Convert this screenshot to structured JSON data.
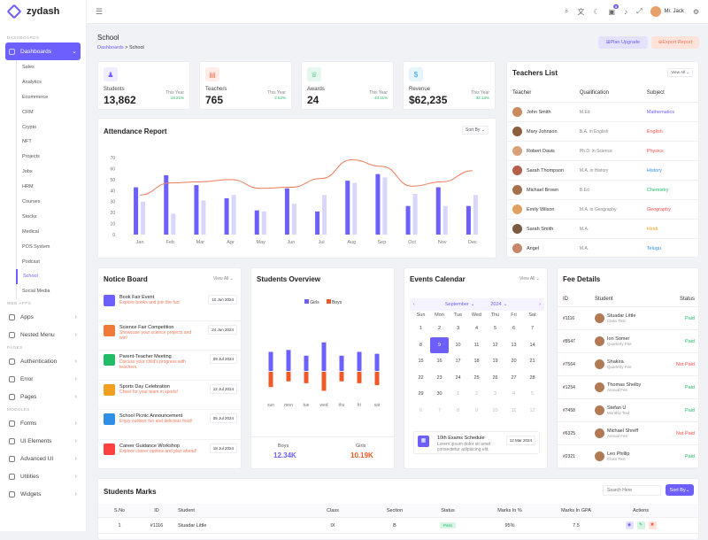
{
  "app": {
    "name": "zydash"
  },
  "topbar": {
    "user": "Mr. Jack",
    "notifications": "5"
  },
  "sidebar": {
    "sections": [
      "DASHBOARDS",
      "WEB APPS",
      "PAGES",
      "MODULES"
    ],
    "dashboards_label": "Dashboards",
    "sub_items": [
      "Sales",
      "Analytics",
      "Ecommerce",
      "CRM",
      "Crypto",
      "NFT",
      "Projects",
      "Jobs",
      "HRM",
      "Courses",
      "Stocks",
      "Medical",
      "POS System",
      "Podcast",
      "School",
      "Social Media"
    ],
    "apps": [
      "Apps",
      "Nested Menu"
    ],
    "pages": [
      "Authentication",
      "Error",
      "Pages"
    ],
    "modules": [
      "Forms",
      "UI Elements",
      "Advanced UI",
      "Utilities",
      "Widgets"
    ]
  },
  "page": {
    "title": "School",
    "breadcrumb_root": "Dashboards",
    "breadcrumb_sep": ">",
    "breadcrumb_current": "School",
    "upgrade": "Plan Upgrade",
    "export": "Export Report"
  },
  "stats": [
    {
      "label": "Students",
      "value": "13,862",
      "period": "This Year",
      "change": "18.21%",
      "icon": "students-icon",
      "color": "#6c5ffc",
      "bg": "#efedff"
    },
    {
      "label": "Teachers",
      "value": "765",
      "period": "This Year",
      "change": "2.52%",
      "icon": "teachers-icon",
      "color": "#f07a5a",
      "bg": "#fdece7"
    },
    {
      "label": "Awards",
      "value": "24",
      "period": "This Year",
      "change": "43.11%",
      "icon": "trophy-icon",
      "color": "#22bb66",
      "bg": "#e6f8ee"
    },
    {
      "label": "Revenue",
      "value": "$62,235",
      "period": "This Year",
      "change": "32.13%",
      "icon": "dollar-icon",
      "color": "#2fa3e6",
      "bg": "#e6f4fc"
    }
  ],
  "attendance": {
    "title": "Attendance Report",
    "sort": "Sort By"
  },
  "chart_data": [
    {
      "type": "bar",
      "title": "Attendance Report",
      "categories": [
        "Jan",
        "Feb",
        "Mar",
        "Apr",
        "May",
        "Jun",
        "Jul",
        "Aug",
        "Sep",
        "Oct",
        "Nov",
        "Dec"
      ],
      "series": [
        {
          "values": [
            43,
            54,
            45,
            33,
            22,
            42,
            21,
            49,
            55,
            26,
            43,
            26
          ]
        },
        {
          "values": [
            30,
            19,
            31,
            36,
            21,
            28,
            36,
            47,
            52,
            37,
            26,
            36
          ]
        }
      ],
      "line": [
        36,
        47,
        48,
        50,
        42,
        43,
        51,
        68,
        62,
        44,
        48,
        58
      ],
      "ylim": [
        0,
        70
      ],
      "yticks": [
        0,
        10,
        20,
        30,
        40,
        50,
        60,
        70
      ]
    },
    {
      "type": "bar",
      "title": "Students Overview",
      "categories": [
        "sun",
        "mon",
        "tue",
        "wed",
        "thu",
        "fri",
        "sat"
      ],
      "series": [
        {
          "name": "Girls",
          "values": [
            50,
            55,
            40,
            75,
            40,
            50,
            45
          ]
        },
        {
          "name": "Boys",
          "values": [
            40,
            25,
            30,
            50,
            25,
            30,
            35
          ]
        }
      ]
    }
  ],
  "teachers": {
    "title": "Teachers List",
    "view": "View All",
    "cols": [
      "Teacher",
      "Qualification",
      "Subject"
    ],
    "rows": [
      {
        "name": "John Smith",
        "qual": "M.Ed",
        "subject": "Mathematics",
        "color": "#6c5ffc",
        "av": "#c98a5e"
      },
      {
        "name": "Mary Johnson",
        "qual": "B.A. in English",
        "subject": "English",
        "color": "#ff4d4d",
        "av": "#8b5e3c"
      },
      {
        "name": "Robert Davis",
        "qual": "Ph.D. in Science",
        "subject": "Physics",
        "color": "#ff4d4d",
        "av": "#d9a07a"
      },
      {
        "name": "Sarah Thompson",
        "qual": "M.A. in History",
        "subject": "History",
        "color": "#2f8fe6",
        "av": "#b5604a"
      },
      {
        "name": "Michael Brown",
        "qual": "B.Ed",
        "subject": "Chemistry",
        "color": "#22bb66",
        "av": "#a3704b"
      },
      {
        "name": "Emily Wilson",
        "qual": "M.A. in Geography",
        "subject": "Geography",
        "color": "#ff4d4d",
        "av": "#e0a060"
      },
      {
        "name": "Sarah Smith",
        "qual": "M.A.",
        "subject": "Hindi",
        "color": "#f0a020",
        "av": "#7a5a40"
      },
      {
        "name": "Angel",
        "qual": "M.A.",
        "subject": "Telugu",
        "color": "#2f8fe6",
        "av": "#c7876a"
      }
    ]
  },
  "notice": {
    "title": "Notice Board",
    "view": "View All",
    "items": [
      {
        "title": "Book Fair Event",
        "desc": "Explore books and join the fun!",
        "date": "10 Jun 2024",
        "color": "#6c5ffc"
      },
      {
        "title": "Science Fair Competition",
        "desc": "Showcase your science projects and win!",
        "date": "24 Jun 2024",
        "color": "#f07a3a"
      },
      {
        "title": "Parent-Teacher Meeting",
        "desc": "Discuss your child's progress with teachers.",
        "date": "09 Jul 2024",
        "color": "#22bb66"
      },
      {
        "title": "Sports Day Celebration",
        "desc": "Cheer for your team in sports!",
        "date": "12 Jul 2024",
        "color": "#f0a020"
      },
      {
        "title": "School Picnic Announcement",
        "desc": "Enjoy outdoor fun and delicious food!",
        "date": "05 Jul 2024",
        "color": "#2f8fe6"
      },
      {
        "title": "Career Guidance Workshop",
        "desc": "Explore career options and plan ahead!",
        "date": "18 Jul 2024",
        "color": "#ff4040"
      }
    ]
  },
  "overview": {
    "title": "Students Overview",
    "legend": [
      "Girls",
      "Boys"
    ],
    "boys_label": "Boys",
    "boys_value": "12.34K",
    "girls_label": "Girls",
    "girls_value": "10.19K"
  },
  "events": {
    "title": "Events Calendar",
    "view": "View All",
    "month": "September",
    "year": "2024",
    "days": [
      "Sun",
      "Mon",
      "Tue",
      "Wed",
      "Thu",
      "Fri",
      "Sat"
    ],
    "cells": [
      "1",
      "2",
      "3",
      "4",
      "5",
      "6",
      "7",
      "8",
      "9",
      "10",
      "11",
      "12",
      "13",
      "14",
      "15",
      "16",
      "17",
      "18",
      "19",
      "20",
      "21",
      "22",
      "23",
      "24",
      "25",
      "26",
      "27",
      "28",
      "29",
      "30",
      "1",
      "2",
      "3",
      "4",
      "5",
      "6",
      "7",
      "8",
      "9",
      "10",
      "11",
      "12"
    ],
    "selected": "9",
    "event_title": "10th Exams Schedule",
    "event_desc": "Lorem ipsum dolor sit amet consectetur adipiscing elit.",
    "event_date": "12 Mar 2024"
  },
  "fees": {
    "title": "Fee Details",
    "cols": [
      "ID",
      "Student",
      "Status"
    ],
    "rows": [
      {
        "id": "#1116",
        "name": "Stuadar Little",
        "type": "Class Test",
        "status": "Paid"
      },
      {
        "id": "#8547",
        "name": "Ion Somer",
        "type": "Quarterly Fee",
        "status": "Paid"
      },
      {
        "id": "#7564",
        "name": "Shakira",
        "type": "Quarterly Fee",
        "status": "Not Paid"
      },
      {
        "id": "#1254",
        "name": "Thomas Shelby",
        "type": "Annual Fee",
        "status": "Paid"
      },
      {
        "id": "#7458",
        "name": "Stefan U",
        "type": "Monthly Test",
        "status": "Paid"
      },
      {
        "id": "#6325",
        "name": "Michael Shreff",
        "type": "Annual Fee",
        "status": "Not Paid"
      },
      {
        "id": "#2321",
        "name": "Leo Phillip",
        "type": "Class Test",
        "status": "Paid"
      }
    ]
  },
  "marks": {
    "title": "Students Marks",
    "search": "Search Here",
    "sort": "Sort By",
    "cols": [
      "S.No",
      "ID",
      "Student",
      "Class",
      "Section",
      "Status",
      "Marks In %",
      "Marks In GPA",
      "Actions"
    ],
    "row": [
      "1",
      "#1116",
      "Stuadar Little",
      "IX",
      "B",
      "Pass",
      "95%",
      "7.5"
    ]
  },
  "colors": {
    "accent": "#6c5ffc",
    "orange": "#f07a5a",
    "green": "#22bb66",
    "red": "#ff4d4d"
  }
}
